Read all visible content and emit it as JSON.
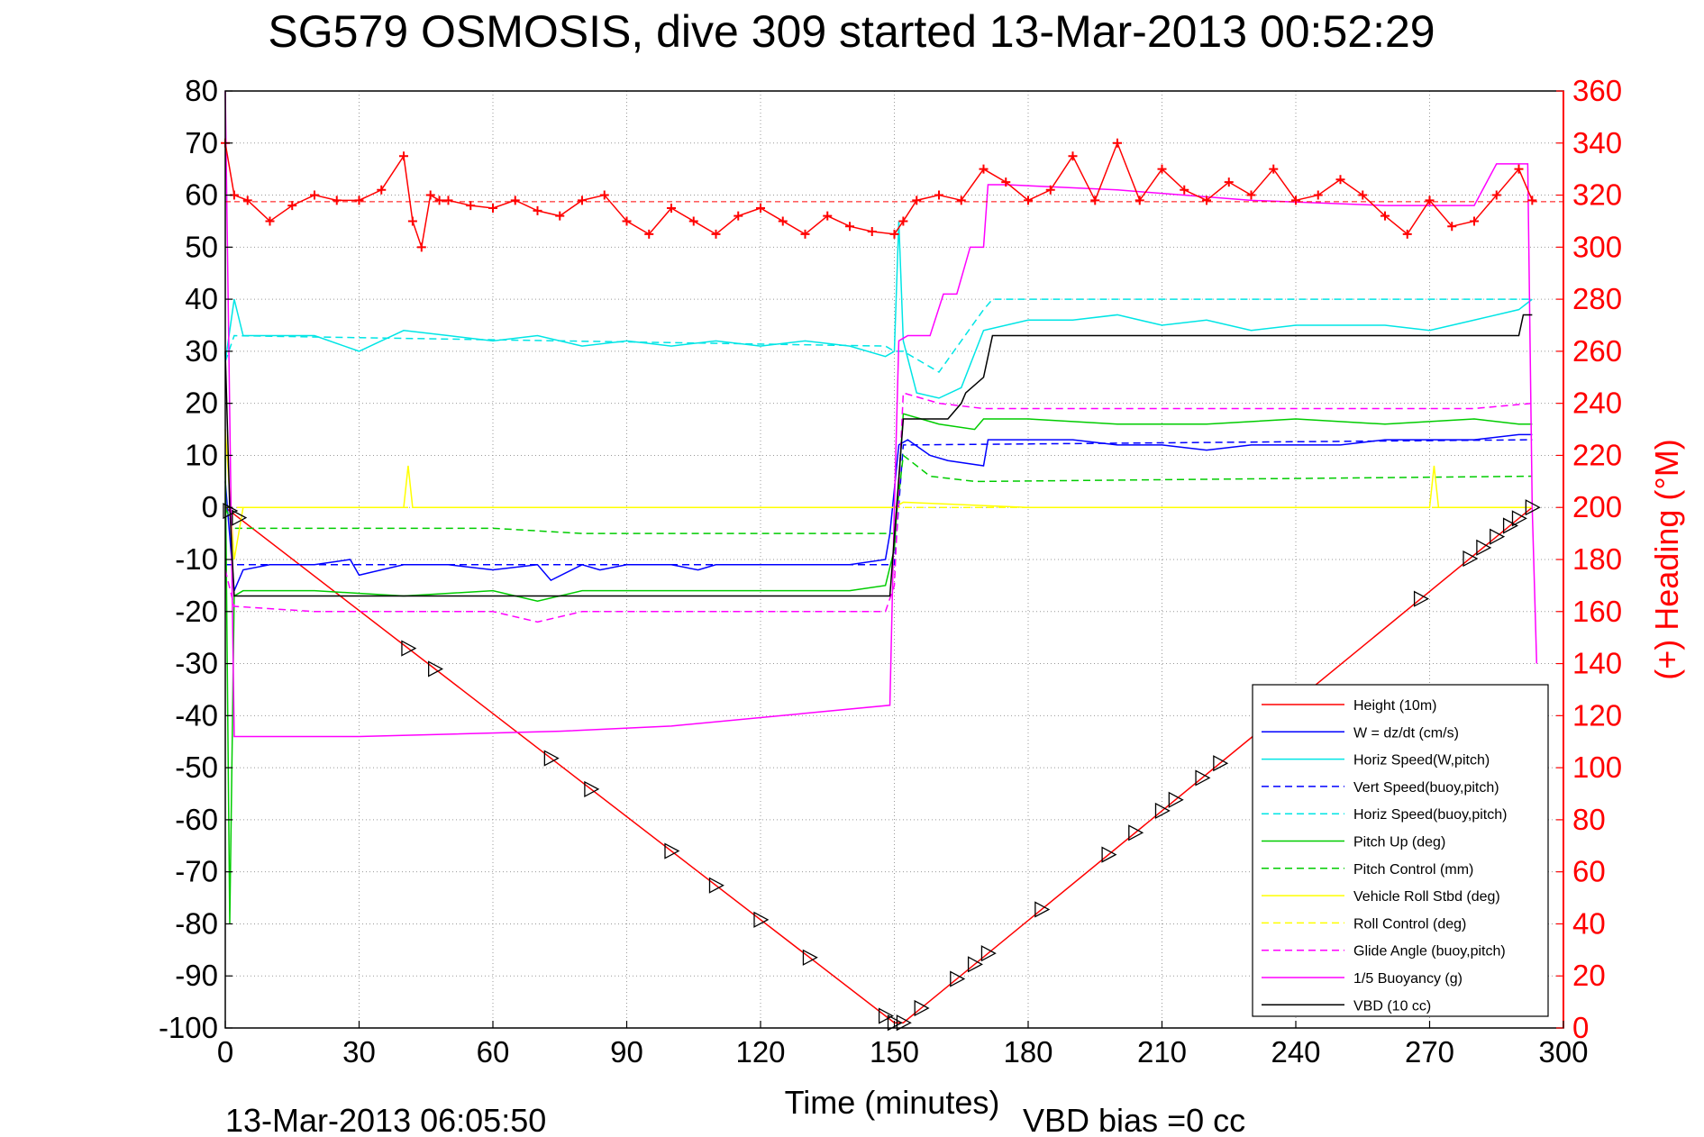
{
  "chart_data": {
    "type": "line",
    "title": "SG579 OSMOSIS, dive 309 started 13-Mar-2013 00:52:29",
    "xlabel": "Time (minutes)",
    "ylabel_right": "(+) Heading (°M)",
    "xlim": [
      0,
      300
    ],
    "ylim": [
      -100,
      80
    ],
    "ylim_right": [
      0,
      360
    ],
    "x_ticks": [
      "0",
      "30",
      "60",
      "90",
      "120",
      "150",
      "180",
      "210",
      "240",
      "270",
      "300"
    ],
    "y_ticks": [
      "80",
      "70",
      "60",
      "50",
      "40",
      "30",
      "20",
      "10",
      "0",
      "-10",
      "-20",
      "-30",
      "-40",
      "-50",
      "-60",
      "-70",
      "-80",
      "-90",
      "-100"
    ],
    "y_ticks_right": [
      "360",
      "340",
      "320",
      "300",
      "280",
      "260",
      "240",
      "220",
      "200",
      "180",
      "160",
      "140",
      "120",
      "100",
      "80",
      "60",
      "40",
      "20",
      "0"
    ],
    "grid": true,
    "legend_position": "bottom-right",
    "footer_left": "13-Mar-2013 06:05:50",
    "footer_right": "VBD bias =0 cc",
    "series": [
      {
        "name": "Height (10m)",
        "color": "#ff0000",
        "style": "solid",
        "axis": "left",
        "x": [
          0,
          150,
          152,
          293
        ],
        "y": [
          0,
          -99,
          -99,
          0
        ]
      },
      {
        "name": "W = dz/dt (cm/s)",
        "color": "#0000ff",
        "style": "solid",
        "axis": "left",
        "x": [
          0,
          2,
          4,
          10,
          20,
          28,
          30,
          40,
          50,
          60,
          70,
          73,
          80,
          84,
          90,
          100,
          106,
          110,
          120,
          130,
          140,
          148,
          149,
          151,
          153,
          158,
          162,
          170,
          171,
          180,
          190,
          200,
          210,
          220,
          230,
          240,
          250,
          260,
          270,
          280,
          290,
          293
        ],
        "y": [
          5,
          -16,
          -12,
          -11,
          -11,
          -10,
          -13,
          -11,
          -11,
          -12,
          -11,
          -14,
          -11,
          -12,
          -11,
          -11,
          -12,
          -11,
          -11,
          -11,
          -11,
          -10,
          -5,
          12,
          13,
          10,
          9,
          8,
          13,
          13,
          13,
          12,
          12,
          11,
          12,
          12,
          12,
          13,
          13,
          13,
          14,
          14
        ]
      },
      {
        "name": "Horiz Speed(W,pitch)",
        "color": "#00e5e5",
        "style": "solid",
        "axis": "left",
        "x": [
          0,
          2,
          4,
          10,
          20,
          30,
          40,
          50,
          60,
          70,
          80,
          90,
          100,
          110,
          120,
          130,
          140,
          148,
          150,
          151,
          152,
          155,
          160,
          165,
          170,
          180,
          190,
          200,
          210,
          220,
          230,
          240,
          250,
          260,
          270,
          280,
          290,
          293
        ],
        "y": [
          28,
          40,
          33,
          33,
          33,
          30,
          34,
          33,
          32,
          33,
          31,
          32,
          31,
          32,
          31,
          32,
          31,
          29,
          30,
          55,
          32,
          22,
          21,
          23,
          34,
          36,
          36,
          37,
          35,
          36,
          34,
          35,
          35,
          35,
          34,
          36,
          38,
          40
        ]
      },
      {
        "name": "Vert Speed(buoy,pitch)",
        "color": "#0000ff",
        "style": "dashed",
        "axis": "left",
        "x": [
          0,
          150,
          152,
          293
        ],
        "y": [
          -11,
          -11,
          12,
          13
        ]
      },
      {
        "name": "Horiz Speed(buoy,pitch)",
        "color": "#00e5e5",
        "style": "dashed",
        "axis": "left",
        "x": [
          0,
          2,
          148,
          150,
          152,
          160,
          170,
          172,
          293
        ],
        "y": [
          28,
          33,
          31,
          30,
          30,
          26,
          38,
          40,
          40
        ]
      },
      {
        "name": "Pitch Up (deg)",
        "color": "#00cc00",
        "style": "solid",
        "axis": "left",
        "x": [
          0,
          1,
          2,
          4,
          20,
          40,
          60,
          70,
          80,
          100,
          120,
          140,
          148,
          150,
          152,
          160,
          168,
          170,
          180,
          200,
          220,
          240,
          260,
          280,
          290,
          293
        ],
        "y": [
          10,
          -80,
          -17,
          -16,
          -16,
          -17,
          -16,
          -18,
          -16,
          -16,
          -16,
          -16,
          -15,
          -8,
          18,
          16,
          15,
          17,
          17,
          16,
          16,
          17,
          16,
          17,
          16,
          16
        ]
      },
      {
        "name": "Pitch Control (mm)",
        "color": "#00cc00",
        "style": "dashed",
        "axis": "left",
        "x": [
          0,
          2,
          20,
          60,
          80,
          100,
          148,
          150,
          152,
          158,
          168,
          170,
          293
        ],
        "y": [
          0,
          -4,
          -4,
          -4,
          -5,
          -5,
          -5,
          -5,
          10,
          6,
          5,
          5,
          6
        ]
      },
      {
        "name": "Vehicle Roll Stbd (deg)",
        "color": "#ffff00",
        "style": "solid",
        "axis": "left",
        "x": [
          0,
          2,
          4,
          20,
          40,
          41,
          42,
          60,
          80,
          100,
          120,
          140,
          148,
          150,
          152,
          180,
          200,
          220,
          240,
          260,
          270,
          271,
          272,
          290,
          293
        ],
        "y": [
          15,
          -10,
          0,
          0,
          0,
          8,
          0,
          0,
          0,
          0,
          0,
          0,
          0,
          0,
          1,
          0,
          0,
          0,
          0,
          0,
          0,
          8,
          0,
          0,
          0
        ]
      },
      {
        "name": "Roll Control (deg)",
        "color": "#ffff00",
        "style": "dashed",
        "axis": "left",
        "x": [
          0,
          293
        ],
        "y": [
          0,
          0
        ]
      },
      {
        "name": "Glide Angle (buoy,pitch)",
        "color": "#ff00ff",
        "style": "dashed",
        "axis": "left",
        "x": [
          0,
          2,
          20,
          60,
          70,
          80,
          100,
          148,
          150,
          152,
          160,
          170,
          180,
          200,
          220,
          240,
          260,
          280,
          293
        ],
        "y": [
          -12,
          -19,
          -20,
          -20,
          -22,
          -20,
          -20,
          -20,
          -15,
          22,
          20,
          19,
          19,
          19,
          19,
          19,
          19,
          19,
          20
        ]
      },
      {
        "name": "1/5 Buoyancy (g)",
        "color": "#ff00ff",
        "style": "solid",
        "axis": "left",
        "x": [
          0,
          2,
          3,
          30,
          75,
          100,
          149,
          150,
          151,
          153,
          158,
          161,
          164,
          167,
          170,
          171,
          175,
          200,
          230,
          260,
          280,
          285,
          292,
          293,
          294
        ],
        "y": [
          80,
          -44,
          -44,
          -44,
          -43,
          -42,
          -38,
          0,
          32,
          33,
          33,
          41,
          41,
          50,
          50,
          62,
          62,
          61,
          59,
          58,
          58,
          66,
          66,
          0,
          -30
        ]
      },
      {
        "name": "VBD (10 cc)",
        "color": "#000000",
        "style": "solid",
        "axis": "left",
        "x": [
          0,
          1,
          2,
          148,
          149,
          152,
          162,
          165,
          166,
          170,
          172,
          180,
          190,
          290,
          291,
          293
        ],
        "y": [
          30,
          0,
          -17,
          -17,
          -17,
          17,
          17,
          20,
          22,
          25,
          33,
          33,
          33,
          33,
          37,
          37
        ]
      },
      {
        "name": "Heading",
        "color": "#ff0000",
        "style": "markers",
        "axis": "right",
        "x": [
          0,
          2,
          5,
          10,
          15,
          20,
          25,
          30,
          35,
          40,
          42,
          44,
          46,
          48,
          50,
          55,
          60,
          65,
          70,
          75,
          80,
          85,
          90,
          95,
          100,
          105,
          110,
          115,
          120,
          125,
          130,
          135,
          140,
          145,
          150,
          152,
          155,
          160,
          165,
          170,
          175,
          180,
          185,
          190,
          195,
          200,
          205,
          210,
          215,
          220,
          225,
          230,
          235,
          240,
          245,
          250,
          255,
          260,
          265,
          270,
          275,
          280,
          285,
          290,
          293
        ],
        "y": [
          340,
          320,
          318,
          310,
          316,
          320,
          318,
          318,
          322,
          335,
          310,
          300,
          320,
          318,
          318,
          316,
          315,
          318,
          314,
          312,
          318,
          320,
          310,
          305,
          315,
          310,
          305,
          312,
          315,
          310,
          305,
          312,
          308,
          306,
          305,
          310,
          318,
          320,
          318,
          330,
          325,
          318,
          322,
          335,
          318,
          340,
          318,
          330,
          322,
          318,
          325,
          320,
          330,
          318,
          320,
          326,
          320,
          312,
          305,
          318,
          308,
          310,
          320,
          330,
          318
        ]
      }
    ]
  }
}
